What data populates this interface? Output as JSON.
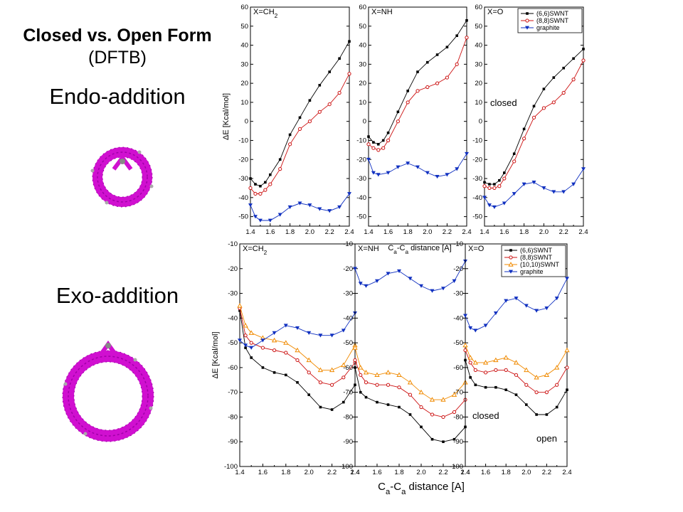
{
  "header": {
    "title": "Closed vs. Open Form",
    "subtitle": "(DFTB)",
    "endo_label": "Endo-addition",
    "exo_label": "Exo-addition"
  },
  "colors": {
    "s66": "#000000",
    "s88": "#cc1111",
    "s1010": "#f08a00",
    "graphite": "#1030c0",
    "molecule": "#d010d0"
  },
  "chart_data": [
    {
      "type": "line",
      "group": "endo",
      "panel_label": "X=CH2",
      "xlim": [
        1.4,
        2.4
      ],
      "ylim": [
        -55,
        60
      ],
      "xticks": [
        "1.4",
        "1.6",
        "1.8",
        "2.0",
        "2.2",
        "2.4"
      ],
      "yticks": [
        "-50",
        "-40",
        "-30",
        "-20",
        "-10",
        "0",
        "10",
        "20",
        "30",
        "40",
        "50",
        "60"
      ],
      "ylabel": "ΔE [Kcal/mol]",
      "xlabel": "",
      "series": [
        {
          "key": "s66",
          "marker": "square",
          "x": [
            1.4,
            1.45,
            1.5,
            1.55,
            1.6,
            1.7,
            1.8,
            1.9,
            2.0,
            2.1,
            2.2,
            2.3,
            2.4
          ],
          "y": [
            -30,
            -33,
            -34,
            -32,
            -28,
            -20,
            -7,
            2,
            11,
            19,
            26,
            33,
            42
          ]
        },
        {
          "key": "s88",
          "marker": "circle",
          "x": [
            1.4,
            1.45,
            1.5,
            1.55,
            1.6,
            1.7,
            1.8,
            1.9,
            2.0,
            2.1,
            2.2,
            2.3,
            2.4
          ],
          "y": [
            -35,
            -38,
            -38,
            -36,
            -33,
            -25,
            -12,
            -4,
            0,
            5,
            9,
            15,
            25
          ]
        },
        {
          "key": "graphite",
          "marker": "tridown",
          "x": [
            1.4,
            1.45,
            1.5,
            1.6,
            1.7,
            1.8,
            1.9,
            2.0,
            2.1,
            2.2,
            2.3,
            2.4
          ],
          "y": [
            -44,
            -50,
            -52,
            -52,
            -49,
            -45,
            -43,
            -44,
            -46,
            -47,
            -45,
            -38
          ]
        }
      ]
    },
    {
      "type": "line",
      "group": "endo",
      "panel_label": "X=NH",
      "xlim": [
        1.4,
        2.4
      ],
      "ylim": [
        -55,
        60
      ],
      "xticks": [
        "1.4",
        "1.6",
        "1.8",
        "2.0",
        "2.2",
        "2.4"
      ],
      "yticks": [
        "-50",
        "-40",
        "-30",
        "-20",
        "-10",
        "0",
        "10",
        "20",
        "30",
        "40",
        "50",
        "60"
      ],
      "ylabel": "",
      "xlabel": "",
      "series": [
        {
          "key": "s66",
          "marker": "square",
          "x": [
            1.4,
            1.45,
            1.5,
            1.55,
            1.6,
            1.7,
            1.8,
            1.9,
            2.0,
            2.1,
            2.2,
            2.3,
            2.4
          ],
          "y": [
            -8,
            -11,
            -12,
            -10,
            -6,
            5,
            16,
            26,
            31,
            35,
            39,
            45,
            53
          ]
        },
        {
          "key": "s88",
          "marker": "circle",
          "x": [
            1.4,
            1.45,
            1.5,
            1.55,
            1.6,
            1.7,
            1.8,
            1.9,
            2.0,
            2.1,
            2.2,
            2.3,
            2.4
          ],
          "y": [
            -12,
            -14,
            -15,
            -14,
            -10,
            0,
            10,
            16,
            18,
            20,
            23,
            30,
            44
          ]
        },
        {
          "key": "graphite",
          "marker": "tridown",
          "x": [
            1.4,
            1.45,
            1.5,
            1.6,
            1.7,
            1.8,
            1.9,
            2.0,
            2.1,
            2.2,
            2.3,
            2.4
          ],
          "y": [
            -20,
            -27,
            -28,
            -27,
            -24,
            -22,
            -24,
            -27,
            -29,
            -28,
            -25,
            -17
          ]
        }
      ]
    },
    {
      "type": "line",
      "group": "endo",
      "panel_label": "X=O",
      "xlim": [
        1.4,
        2.4
      ],
      "ylim": [
        -55,
        60
      ],
      "xticks": [
        "1.4",
        "1.6",
        "1.8",
        "2.0",
        "2.2",
        "2.4"
      ],
      "yticks": [
        "-50",
        "-40",
        "-30",
        "-20",
        "-10",
        "0",
        "10",
        "20",
        "30",
        "40",
        "50",
        "60"
      ],
      "ylabel": "",
      "xlabel": "",
      "annotation": "closed",
      "legend": [
        "(6,6)SWNT",
        "(8,8)SWNT",
        "graphite"
      ],
      "series": [
        {
          "key": "s66",
          "marker": "square",
          "x": [
            1.4,
            1.45,
            1.5,
            1.55,
            1.6,
            1.7,
            1.8,
            1.9,
            2.0,
            2.1,
            2.2,
            2.3,
            2.4
          ],
          "y": [
            -32,
            -33,
            -33,
            -31,
            -27,
            -17,
            -4,
            8,
            17,
            23,
            28,
            33,
            38
          ]
        },
        {
          "key": "s88",
          "marker": "circle",
          "x": [
            1.4,
            1.45,
            1.5,
            1.55,
            1.6,
            1.7,
            1.8,
            1.9,
            2.0,
            2.1,
            2.2,
            2.3,
            2.4
          ],
          "y": [
            -34,
            -35,
            -35,
            -34,
            -30,
            -21,
            -9,
            2,
            7,
            10,
            15,
            22,
            32
          ]
        },
        {
          "key": "graphite",
          "marker": "tridown",
          "x": [
            1.4,
            1.45,
            1.5,
            1.6,
            1.7,
            1.8,
            1.9,
            2.0,
            2.1,
            2.2,
            2.3,
            2.4
          ],
          "y": [
            -40,
            -44,
            -45,
            -43,
            -38,
            -33,
            -32,
            -35,
            -37,
            -37,
            -33,
            -25
          ]
        }
      ]
    },
    {
      "type": "line",
      "group": "exo",
      "panel_label": "X=CH2",
      "xlim": [
        1.4,
        2.4
      ],
      "ylim": [
        -100,
        -10
      ],
      "xticks": [
        "1.4",
        "1.6",
        "1.8",
        "2.0",
        "2.2",
        "2.4"
      ],
      "yticks": [
        "-100",
        "-90",
        "-80",
        "-70",
        "-60",
        "-50",
        "-40",
        "-30",
        "-20",
        "-10"
      ],
      "ylabel": "ΔE [Kcal/mol]",
      "xlabel": "",
      "series": [
        {
          "key": "s66",
          "marker": "square",
          "x": [
            1.4,
            1.45,
            1.5,
            1.6,
            1.7,
            1.8,
            1.9,
            2.0,
            2.1,
            2.2,
            2.3,
            2.4
          ],
          "y": [
            -37,
            -52,
            -56,
            -60,
            -62,
            -63,
            -66,
            -71,
            -76,
            -77,
            -74,
            -67
          ]
        },
        {
          "key": "s88",
          "marker": "circle",
          "x": [
            1.4,
            1.45,
            1.5,
            1.6,
            1.7,
            1.8,
            1.9,
            2.0,
            2.1,
            2.2,
            2.3,
            2.4
          ],
          "y": [
            -36,
            -47,
            -50,
            -52,
            -53,
            -54,
            -57,
            -62,
            -66,
            -67,
            -64,
            -58
          ]
        },
        {
          "key": "s1010",
          "marker": "triup",
          "x": [
            1.4,
            1.45,
            1.5,
            1.6,
            1.7,
            1.8,
            1.9,
            2.0,
            2.1,
            2.2,
            2.3,
            2.4
          ],
          "y": [
            -35,
            -43,
            -46,
            -48,
            -49,
            -50,
            -53,
            -57,
            -61,
            -61,
            -59,
            -51
          ]
        },
        {
          "key": "graphite",
          "marker": "tridown",
          "x": [
            1.4,
            1.45,
            1.5,
            1.6,
            1.7,
            1.8,
            1.9,
            2.0,
            2.1,
            2.2,
            2.3,
            2.4
          ],
          "y": [
            -49,
            -51,
            -52,
            -49,
            -46,
            -43,
            -44,
            -46,
            -47,
            -47,
            -45,
            -38
          ]
        }
      ]
    },
    {
      "type": "line",
      "group": "exo",
      "panel_label": "X=NH",
      "xlim": [
        1.4,
        2.4
      ],
      "ylim": [
        -100,
        -10
      ],
      "xticks": [
        "1.4",
        "1.6",
        "1.8",
        "2.0",
        "2.2",
        "2.4"
      ],
      "yticks": [
        "-100",
        "-90",
        "-80",
        "-70",
        "-60",
        "-50",
        "-40",
        "-30",
        "-20",
        "-10"
      ],
      "ylabel": "",
      "xlabel": "Ca-Ca distance [A]",
      "series": [
        {
          "key": "s66",
          "marker": "square",
          "x": [
            1.4,
            1.45,
            1.5,
            1.6,
            1.7,
            1.8,
            1.9,
            2.0,
            2.1,
            2.2,
            2.3,
            2.4
          ],
          "y": [
            -60,
            -70,
            -72,
            -74,
            -75,
            -76,
            -79,
            -84,
            -89,
            -90,
            -89,
            -84
          ]
        },
        {
          "key": "s88",
          "marker": "circle",
          "x": [
            1.4,
            1.45,
            1.5,
            1.6,
            1.7,
            1.8,
            1.9,
            2.0,
            2.1,
            2.2,
            2.3,
            2.4
          ],
          "y": [
            -57,
            -63,
            -66,
            -67,
            -67,
            -68,
            -71,
            -76,
            -79,
            -80,
            -78,
            -73
          ]
        },
        {
          "key": "s1010",
          "marker": "triup",
          "x": [
            1.4,
            1.45,
            1.5,
            1.6,
            1.7,
            1.8,
            1.9,
            2.0,
            2.1,
            2.2,
            2.3,
            2.4
          ],
          "y": [
            -52,
            -60,
            -62,
            -63,
            -62,
            -63,
            -66,
            -70,
            -73,
            -73,
            -71,
            -66
          ]
        },
        {
          "key": "graphite",
          "marker": "tridown",
          "x": [
            1.4,
            1.45,
            1.5,
            1.6,
            1.7,
            1.8,
            1.9,
            2.0,
            2.1,
            2.2,
            2.3,
            2.4
          ],
          "y": [
            -20,
            -26,
            -27,
            -25,
            -22,
            -21,
            -24,
            -27,
            -29,
            -28,
            -25,
            -17
          ]
        }
      ]
    },
    {
      "type": "line",
      "group": "exo",
      "panel_label": "X=O",
      "xlim": [
        1.4,
        2.4
      ],
      "ylim": [
        -100,
        -10
      ],
      "xticks": [
        "1.4",
        "1.6",
        "1.8",
        "2.0",
        "2.2",
        "2.4"
      ],
      "yticks": [
        "-100",
        "-90",
        "-80",
        "-70",
        "-60",
        "-50",
        "-40",
        "-30",
        "-20",
        "-10"
      ],
      "ylabel": "",
      "xlabel": "",
      "annotations": [
        "closed",
        "open"
      ],
      "legend": [
        "(6,6)SWNT",
        "(8,8)SWNT",
        "(10,10)SWNT",
        "graphite"
      ],
      "series": [
        {
          "key": "s66",
          "marker": "square",
          "x": [
            1.4,
            1.45,
            1.5,
            1.6,
            1.7,
            1.8,
            1.9,
            2.0,
            2.1,
            2.2,
            2.3,
            2.4
          ],
          "y": [
            -57,
            -64,
            -67,
            -68,
            -68,
            -69,
            -71,
            -75,
            -79,
            -79,
            -76,
            -69
          ]
        },
        {
          "key": "s88",
          "marker": "circle",
          "x": [
            1.4,
            1.45,
            1.5,
            1.6,
            1.7,
            1.8,
            1.9,
            2.0,
            2.1,
            2.2,
            2.3,
            2.4
          ],
          "y": [
            -53,
            -58,
            -61,
            -62,
            -61,
            -61,
            -63,
            -67,
            -70,
            -70,
            -67,
            -60
          ]
        },
        {
          "key": "s1010",
          "marker": "triup",
          "x": [
            1.4,
            1.45,
            1.5,
            1.6,
            1.7,
            1.8,
            1.9,
            2.0,
            2.1,
            2.2,
            2.3,
            2.4
          ],
          "y": [
            -51,
            -56,
            -58,
            -58,
            -57,
            -56,
            -58,
            -61,
            -64,
            -63,
            -60,
            -53
          ]
        },
        {
          "key": "graphite",
          "marker": "tridown",
          "x": [
            1.4,
            1.45,
            1.5,
            1.6,
            1.7,
            1.8,
            1.9,
            2.0,
            2.1,
            2.2,
            2.3,
            2.4
          ],
          "y": [
            -39,
            -44,
            -45,
            -43,
            -38,
            -33,
            -32,
            -35,
            -37,
            -36,
            -32,
            -24
          ]
        }
      ]
    }
  ]
}
